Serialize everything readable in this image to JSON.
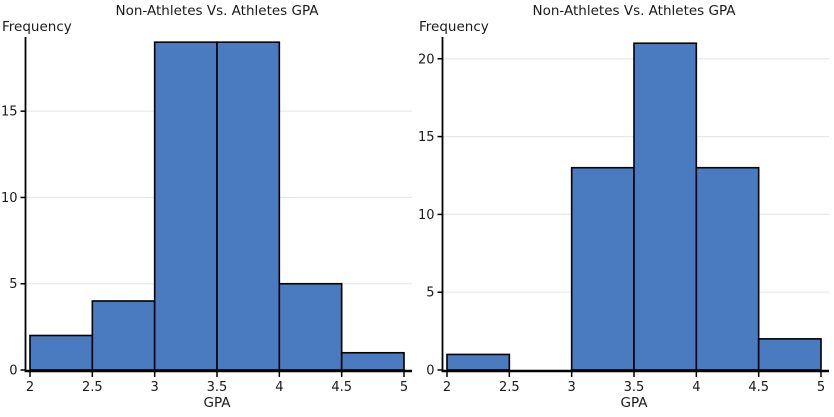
{
  "page": {
    "background": "#ffffff"
  },
  "colors": {
    "bar_fill": "#4a7abf",
    "bar_edge": "#000000",
    "axis": "#000000",
    "gridline": "#e8e8e8",
    "text": "#1a1a1a"
  },
  "chart_data": [
    {
      "type": "bar",
      "subtype": "histogram",
      "name": "non-athletes-gpa-histogram",
      "title": "Non-Athletes Vs. Athletes GPA",
      "xlabel": "GPA",
      "ylabel": "Frequency",
      "bin_edges": [
        2,
        2.5,
        3,
        3.5,
        4,
        4.5,
        5
      ],
      "frequencies": [
        2,
        4,
        19,
        19,
        5,
        1
      ],
      "xticks": [
        2,
        2.5,
        3,
        3.5,
        4,
        4.5,
        5
      ],
      "yticks": [
        0,
        5,
        10,
        15
      ],
      "xlim": [
        2,
        5
      ],
      "ylim": [
        0,
        19.3
      ],
      "grid": "horizontal",
      "legend": "none"
    },
    {
      "type": "bar",
      "subtype": "histogram",
      "name": "athletes-gpa-histogram",
      "title": "Non-Athletes Vs. Athletes GPA",
      "xlabel": "GPA",
      "ylabel": "Frequency",
      "bin_edges": [
        2,
        2.5,
        3,
        3.5,
        4,
        4.5,
        5
      ],
      "frequencies": [
        1,
        0,
        13,
        21,
        13,
        2
      ],
      "xticks": [
        2,
        2.5,
        3,
        3.5,
        4,
        4.5,
        5
      ],
      "yticks": [
        0,
        5,
        10,
        15,
        20
      ],
      "xlim": [
        2,
        5
      ],
      "ylim": [
        0,
        21.4
      ],
      "grid": "horizontal",
      "legend": "none"
    }
  ]
}
